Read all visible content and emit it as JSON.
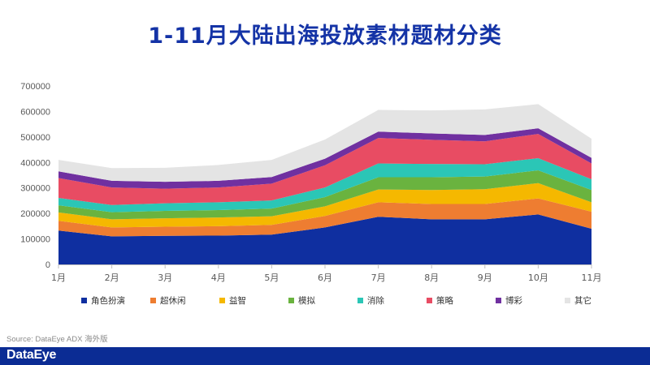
{
  "title": "1-11月大陆出海投放素材题材分类",
  "source": "Source: DataEye ADX 海外版",
  "logo_text": "DataEye",
  "chart_data": {
    "type": "area",
    "stacked": true,
    "title": "1-11月大陆出海投放素材题材分类",
    "xlabel": "",
    "ylabel": "",
    "categories": [
      "1月",
      "2月",
      "3月",
      "4月",
      "5月",
      "6月",
      "7月",
      "8月",
      "9月",
      "10月",
      "11月"
    ],
    "ylim": [
      0,
      700000
    ],
    "yticks": [
      "0",
      "100000",
      "200000",
      "300000",
      "400000",
      "500000",
      "600000",
      "700000"
    ],
    "legend_position": "bottom",
    "series": [
      {
        "name": "角色扮演",
        "color": "#0f2fa0",
        "values": [
          133000,
          110000,
          112000,
          113000,
          117000,
          145000,
          187000,
          177000,
          177000,
          196000,
          140000
        ]
      },
      {
        "name": "超休闲",
        "color": "#ee7d31",
        "values": [
          38000,
          35000,
          36000,
          37000,
          38000,
          45000,
          57000,
          60000,
          60000,
          63000,
          67000
        ]
      },
      {
        "name": "益智",
        "color": "#f5b800",
        "values": [
          33000,
          32000,
          33000,
          34000,
          34000,
          38000,
          50000,
          55000,
          58000,
          60000,
          37000
        ]
      },
      {
        "name": "模拟",
        "color": "#6ab33f",
        "values": [
          28000,
          28000,
          29000,
          29000,
          30000,
          36000,
          48000,
          50000,
          50000,
          50000,
          48000
        ]
      },
      {
        "name": "消除",
        "color": "#2bc6b6",
        "values": [
          29000,
          28000,
          30000,
          31000,
          32000,
          38000,
          54000,
          52000,
          48000,
          48000,
          42000
        ]
      },
      {
        "name": "策略",
        "color": "#e84c63",
        "values": [
          78000,
          69000,
          57000,
          58000,
          66000,
          87000,
          100000,
          95000,
          90000,
          95000,
          62000
        ]
      },
      {
        "name": "博彩",
        "color": "#7030a0",
        "values": [
          26000,
          26000,
          27000,
          26000,
          26000,
          26000,
          25000,
          25000,
          25000,
          22000,
          22000
        ]
      },
      {
        "name": "其它",
        "color": "#e4e4e4",
        "values": [
          45000,
          50000,
          55000,
          62000,
          67000,
          75000,
          85000,
          90000,
          100000,
          95000,
          75000
        ]
      }
    ]
  }
}
